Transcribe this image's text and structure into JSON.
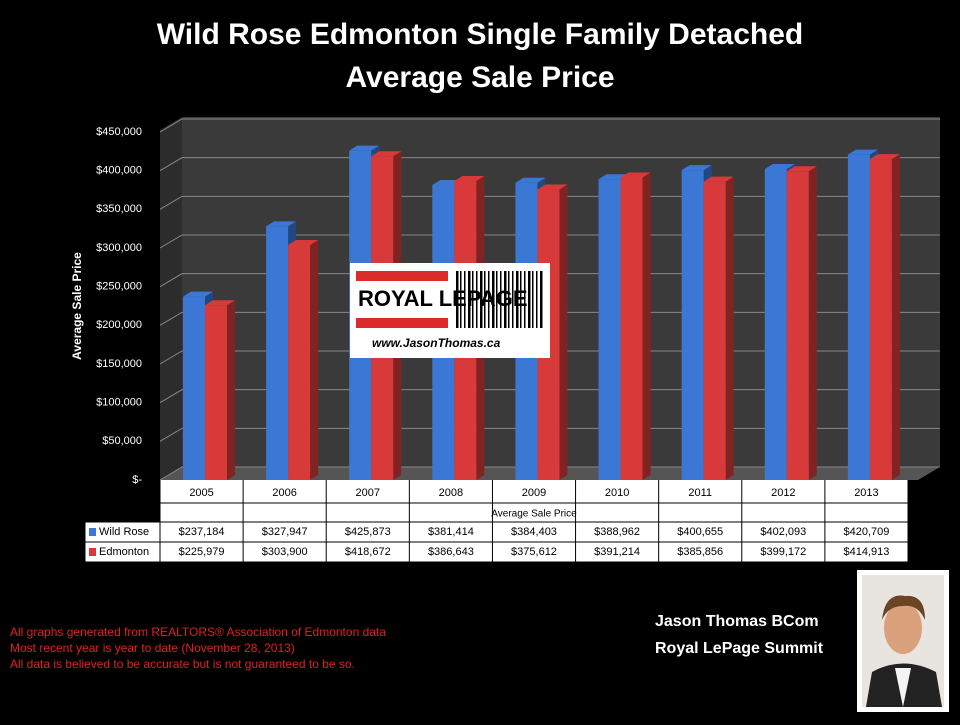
{
  "chart_data": {
    "type": "bar",
    "title": "Wild Rose Edmonton Single Family Detached",
    "subtitle": "Average Sale Price",
    "y_label": "Average Sale Price",
    "x_label": "Average Sale Price",
    "categories": [
      "2005",
      "2006",
      "2007",
      "2008",
      "2009",
      "2010",
      "2011",
      "2012",
      "2013"
    ],
    "series": [
      {
        "name": "Wild Rose",
        "color": "#3b78d6",
        "values": [
          237184,
          327947,
          425873,
          381414,
          384403,
          388962,
          400655,
          402093,
          420709
        ],
        "value_labels": [
          "$237,184",
          "$327,947",
          "$425,873",
          "$381,414",
          "$384,403",
          "$388,962",
          "$400,655",
          "$402,093",
          "$420,709"
        ]
      },
      {
        "name": "Edmonton",
        "color": "#d83a3a",
        "values": [
          225979,
          303900,
          418672,
          386643,
          375612,
          391214,
          385856,
          399172,
          414913
        ],
        "value_labels": [
          "$225,979",
          "$303,900",
          "$418,672",
          "$386,643",
          "$375,612",
          "$391,214",
          "$385,856",
          "$399,172",
          "$414,913"
        ]
      }
    ],
    "ylim": [
      0,
      450000
    ],
    "yticks": [
      {
        "value": 0,
        "label": "$-"
      },
      {
        "value": 50000,
        "label": "$50,000"
      },
      {
        "value": 100000,
        "label": "$100,000"
      },
      {
        "value": 150000,
        "label": "$150,000"
      },
      {
        "value": 200000,
        "label": "$200,000"
      },
      {
        "value": 250000,
        "label": "$250,000"
      },
      {
        "value": 300000,
        "label": "$300,000"
      },
      {
        "value": 350000,
        "label": "$350,000"
      },
      {
        "value": 400000,
        "label": "$400,000"
      },
      {
        "value": 450000,
        "label": "$450,000"
      }
    ],
    "grid": true
  },
  "logo": {
    "brand": "ROYAL LEPAGE",
    "url": "www.JasonThomas.ca"
  },
  "footnotes": [
    "All graphs generated from REALTORS® Association of Edmonton data",
    "Most recent year is year to date (November 28, 2013)",
    "All data is believed to be accurate but is not guaranteed to be so."
  ],
  "agent": {
    "name": "Jason Thomas BCom",
    "company": "Royal LePage Summit"
  }
}
